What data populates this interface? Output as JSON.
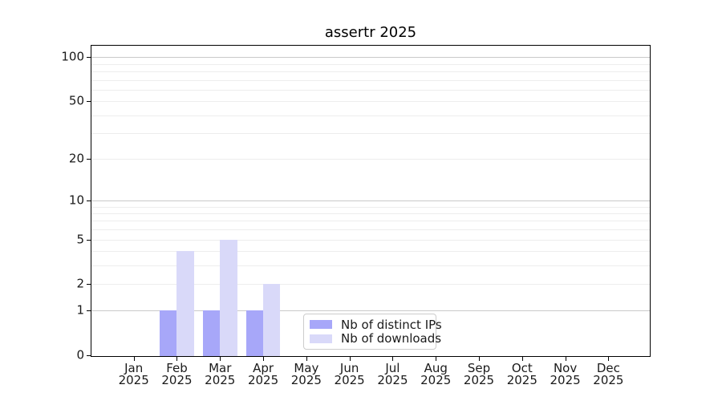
{
  "chart_data": {
    "type": "bar",
    "title": "assertr 2025",
    "x_categories": [
      "Jan",
      "Feb",
      "Mar",
      "Apr",
      "May",
      "Jun",
      "Jul",
      "Aug",
      "Sep",
      "Oct",
      "Nov",
      "Dec"
    ],
    "x_year_line": "2025",
    "series": [
      {
        "name": "Nb of distinct IPs",
        "color": "#a7a7f9",
        "values": [
          0,
          1,
          1,
          1,
          0,
          0,
          0,
          0,
          0,
          0,
          0,
          0
        ]
      },
      {
        "name": "Nb of downloads",
        "color": "#d9d9f9",
        "values": [
          0,
          4,
          5,
          2,
          0,
          0,
          0,
          0,
          0,
          0,
          0,
          0
        ]
      }
    ],
    "y_axis": {
      "scale": "log10(value+1)",
      "tick_labels": [
        0,
        1,
        2,
        5,
        10,
        20,
        50,
        100
      ],
      "major_gridlines": [
        1,
        10,
        100
      ],
      "minor_gridlines": [
        2,
        3,
        4,
        5,
        6,
        7,
        8,
        9,
        20,
        30,
        40,
        50,
        60,
        70,
        80,
        90
      ],
      "range": [
        0,
        118
      ]
    },
    "legend": {
      "position": "lower center",
      "entries": [
        "Nb of distinct IPs",
        "Nb of downloads"
      ]
    },
    "grid": "horizontal"
  },
  "colors": {
    "background": "#ffffff",
    "bar_distinct_ips": "#a7a7f9",
    "bar_downloads": "#d9d9f9",
    "major_grid": "#c9c9c9",
    "minor_grid": "#ededed",
    "axis": "#000000",
    "legend_border": "#cccccc",
    "text": "#1a1a1a"
  }
}
